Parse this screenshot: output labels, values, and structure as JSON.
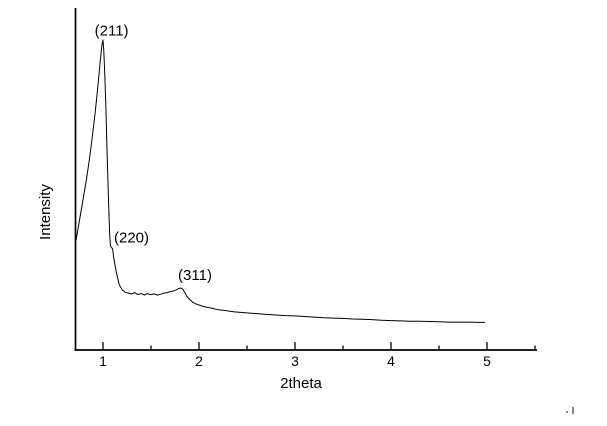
{
  "chart_data": {
    "type": "line",
    "title": "",
    "xlabel": "2theta",
    "ylabel": "Intensity",
    "x_ticks": [
      1,
      2,
      3,
      4,
      5
    ],
    "x_minor_ticks": [
      1.5,
      2.5,
      3.5,
      4.5,
      5.5
    ],
    "xlim": [
      0.7,
      5.55
    ],
    "ylim": [
      0,
      110
    ],
    "ylabel_note": "arbitrary units, no y ticks shown",
    "grid": false,
    "legend": "none",
    "line_color": "#000000",
    "background_color": "#ffffff",
    "annotations": [
      {
        "label": "(211)",
        "x": 1.09,
        "y": 103.0
      },
      {
        "label": "(220)",
        "x": 1.297,
        "y": 36.3
      },
      {
        "label": "(311)",
        "x": 1.958,
        "y": 24.2
      }
    ],
    "series": [
      {
        "name": "XRD pattern",
        "points": [
          [
            0.72,
            35.5
          ],
          [
            0.74,
            39.0
          ],
          [
            0.77,
            44.5
          ],
          [
            0.8,
            50.0
          ],
          [
            0.83,
            55.5
          ],
          [
            0.86,
            62.0
          ],
          [
            0.89,
            69.0
          ],
          [
            0.92,
            77.0
          ],
          [
            0.945,
            84.5
          ],
          [
            0.965,
            91.0
          ],
          [
            0.98,
            96.0
          ],
          [
            0.99,
            98.5
          ],
          [
            1.0,
            100.0
          ],
          [
            1.008,
            96.5
          ],
          [
            1.02,
            88.0
          ],
          [
            1.03,
            78.0
          ],
          [
            1.04,
            67.0
          ],
          [
            1.05,
            56.0
          ],
          [
            1.06,
            45.5
          ],
          [
            1.07,
            37.0
          ],
          [
            1.078,
            33.5
          ],
          [
            1.085,
            33.2
          ],
          [
            1.1,
            32.6
          ],
          [
            1.11,
            30.0
          ],
          [
            1.13,
            26.5
          ],
          [
            1.15,
            23.5
          ],
          [
            1.17,
            21.0
          ],
          [
            1.2,
            19.4
          ],
          [
            1.23,
            18.6
          ],
          [
            1.26,
            18.4
          ],
          [
            1.3,
            18.1
          ],
          [
            1.33,
            18.5
          ],
          [
            1.36,
            17.9
          ],
          [
            1.4,
            18.2
          ],
          [
            1.43,
            17.7
          ],
          [
            1.46,
            18.2
          ],
          [
            1.5,
            17.8
          ],
          [
            1.53,
            18.1
          ],
          [
            1.57,
            17.7
          ],
          [
            1.6,
            18.0
          ],
          [
            1.63,
            18.3
          ],
          [
            1.67,
            18.5
          ],
          [
            1.7,
            18.8
          ],
          [
            1.73,
            19.0
          ],
          [
            1.76,
            19.4
          ],
          [
            1.79,
            19.8
          ],
          [
            1.81,
            20.0
          ],
          [
            1.83,
            19.6
          ],
          [
            1.85,
            18.7
          ],
          [
            1.87,
            17.5
          ],
          [
            1.9,
            16.4
          ],
          [
            1.94,
            15.3
          ],
          [
            1.98,
            14.7
          ],
          [
            2.05,
            14.0
          ],
          [
            2.13,
            13.5
          ],
          [
            2.2,
            13.0
          ],
          [
            2.28,
            12.7
          ],
          [
            2.37,
            12.3
          ],
          [
            2.45,
            12.1
          ],
          [
            2.53,
            11.9
          ],
          [
            2.62,
            11.7
          ],
          [
            2.7,
            11.5
          ],
          [
            2.8,
            11.3
          ],
          [
            2.9,
            11.1
          ],
          [
            3.0,
            11.0
          ],
          [
            3.1,
            10.8
          ],
          [
            3.2,
            10.6
          ],
          [
            3.3,
            10.4
          ],
          [
            3.4,
            10.3
          ],
          [
            3.5,
            10.2
          ],
          [
            3.6,
            10.0
          ],
          [
            3.7,
            9.9
          ],
          [
            3.8,
            9.8
          ],
          [
            3.9,
            9.6
          ],
          [
            4.0,
            9.5
          ],
          [
            4.1,
            9.4
          ],
          [
            4.2,
            9.3
          ],
          [
            4.3,
            9.3
          ],
          [
            4.4,
            9.2
          ],
          [
            4.5,
            9.1
          ],
          [
            4.6,
            9.0
          ],
          [
            4.7,
            9.0
          ],
          [
            4.8,
            9.0
          ],
          [
            4.9,
            8.9
          ],
          [
            4.98,
            8.9
          ]
        ]
      }
    ]
  },
  "stray_marks": {
    "color": "#8a8a8a"
  }
}
